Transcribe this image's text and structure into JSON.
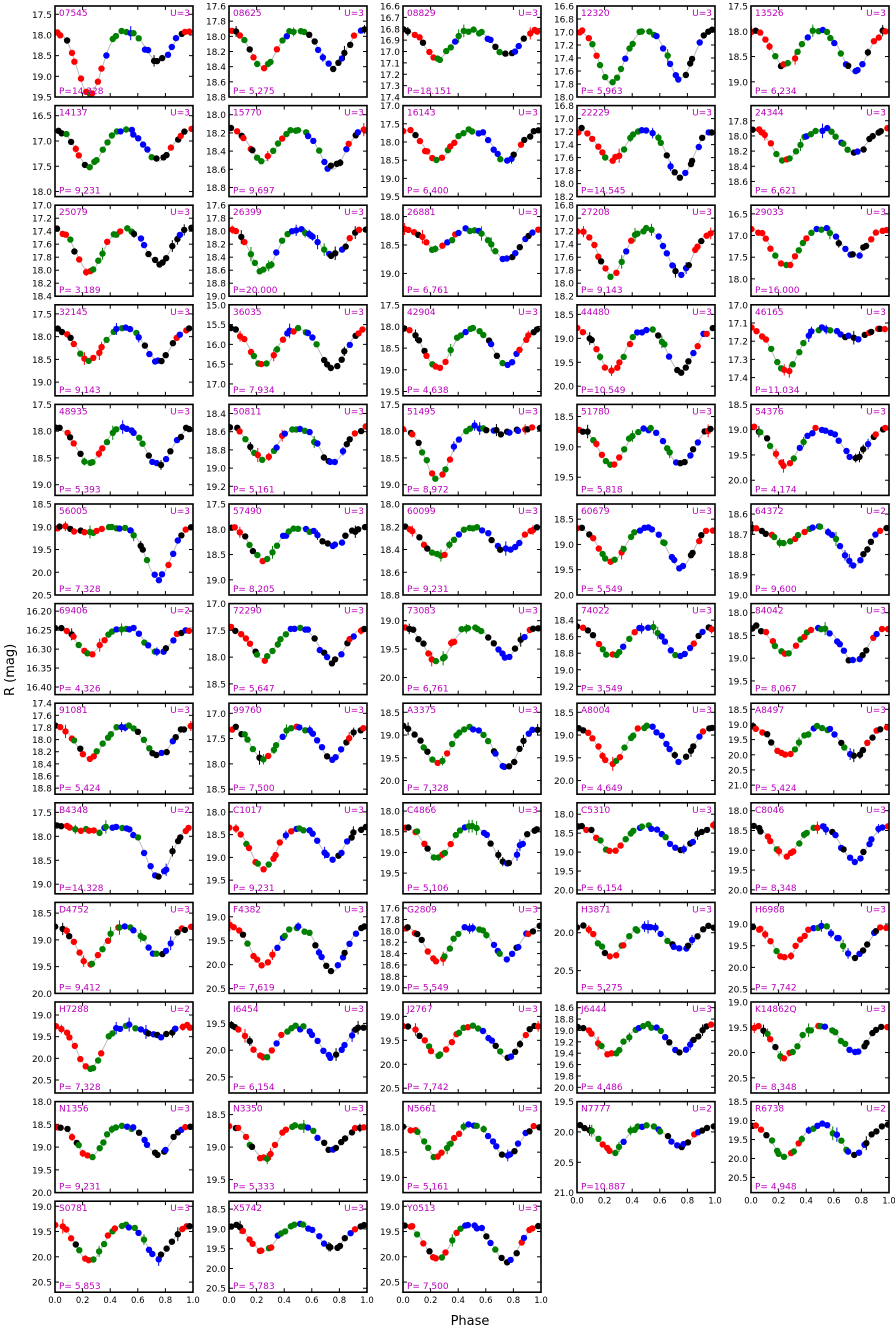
{
  "figure": {
    "xlabel": "Phase",
    "ylabel": "R (mag)",
    "colors": {
      "label": "#bb00bb",
      "model": "#bbbbbb",
      "black": "#000000",
      "red": "#ff0000",
      "green": "#008000",
      "blue": "#0000ff"
    }
  },
  "chart_data": [
    {
      "type": "scatter",
      "id": "07545",
      "P": "P=14.328",
      "U": "U=3",
      "ylim": [
        19.5,
        17.3
      ],
      "yticks": [
        "17.5",
        "18.0",
        "18.5",
        "19.0",
        "19.5"
      ],
      "depth": [
        1.2,
        0.6
      ]
    },
    {
      "type": "scatter",
      "id": "08625",
      "P": "P= 5.275",
      "U": "U=3",
      "ylim": [
        18.8,
        17.6
      ],
      "yticks": [
        "17.6",
        "17.8",
        "18.0",
        "18.2",
        "18.4",
        "18.6",
        "18.8"
      ],
      "depth": [
        0.7,
        0.7
      ]
    },
    {
      "type": "scatter",
      "id": "08829",
      "P": "P=18.151",
      "U": "U=3",
      "ylim": [
        17.4,
        16.6
      ],
      "yticks": [
        "16.6",
        "16.7",
        "16.8",
        "16.9",
        "17.0",
        "17.1",
        "17.2",
        "17.3",
        "17.4"
      ],
      "depth": [
        0.55,
        0.5
      ]
    },
    {
      "type": "scatter",
      "id": "12320",
      "P": "P= 5.963",
      "U": "U=3",
      "ylim": [
        18.0,
        16.6
      ],
      "yticks": [
        "16.6",
        "16.8",
        "17.0",
        "17.2",
        "17.4",
        "17.6",
        "17.8",
        "18.0"
      ],
      "depth": [
        1.0,
        0.9
      ]
    },
    {
      "type": "scatter",
      "id": "13526",
      "P": "P= 6.234",
      "U": "U=3",
      "ylim": [
        19.3,
        17.5
      ],
      "yticks": [
        "17.5",
        "18.0",
        "18.5",
        "19.0"
      ],
      "depth": [
        0.7,
        0.8
      ]
    },
    {
      "type": "scatter",
      "id": "14137",
      "P": "P= 9.231",
      "U": "U=3",
      "ylim": [
        18.1,
        16.3
      ],
      "yticks": [
        "16.5",
        "17.0",
        "17.5",
        "18.0"
      ],
      "depth": [
        0.7,
        0.6
      ]
    },
    {
      "type": "scatter",
      "id": "15770",
      "P": "P= 9.697",
      "U": "U=3",
      "ylim": [
        18.9,
        17.9
      ],
      "yticks": [
        "18.0",
        "18.2",
        "18.4",
        "18.6",
        "18.8"
      ],
      "depth": [
        0.6,
        0.75
      ]
    },
    {
      "type": "scatter",
      "id": "16143",
      "P": "P= 6.400",
      "U": "U=3",
      "ylim": [
        19.5,
        17.0
      ],
      "yticks": [
        "17.0",
        "17.5",
        "18.0",
        "18.5",
        "19.0",
        "19.5"
      ],
      "depth": [
        0.6,
        0.6
      ]
    },
    {
      "type": "scatter",
      "id": "22229",
      "P": "P=14.545",
      "U": "U=3",
      "ylim": [
        18.2,
        16.8
      ],
      "yticks": [
        "16.8",
        "17.0",
        "17.2",
        "17.4",
        "17.6",
        "17.8",
        "18.0",
        "18.2"
      ],
      "depth": [
        0.6,
        0.9
      ]
    },
    {
      "type": "scatter",
      "id": "24344",
      "P": "P= 6.621",
      "U": "U=3",
      "ylim": [
        18.8,
        17.6
      ],
      "yticks": [
        "17.8",
        "18.0",
        "18.2",
        "18.4",
        "18.6"
      ],
      "depth": [
        0.6,
        0.45
      ]
    },
    {
      "type": "scatter",
      "id": "25079",
      "P": "P= 3.189",
      "U": "U=3",
      "ylim": [
        18.4,
        17.0
      ],
      "yticks": [
        "17.0",
        "17.2",
        "17.4",
        "17.6",
        "17.8",
        "18.0",
        "18.2",
        "18.4"
      ],
      "depth": [
        0.8,
        0.65
      ]
    },
    {
      "type": "scatter",
      "id": "26399",
      "P": "P=20.000",
      "U": "U=3",
      "ylim": [
        19.0,
        17.6
      ],
      "yticks": [
        "17.6",
        "17.8",
        "18.0",
        "18.2",
        "18.4",
        "18.6",
        "18.8",
        "19.0"
      ],
      "depth": [
        0.8,
        0.5
      ]
    },
    {
      "type": "scatter",
      "id": "26881",
      "P": "P= 6.761",
      "U": "U=3",
      "ylim": [
        19.4,
        17.8
      ],
      "yticks": [
        "18.0",
        "18.5",
        "19.0"
      ],
      "depth": [
        0.4,
        0.6
      ]
    },
    {
      "type": "scatter",
      "id": "27208",
      "P": "P= 9.143",
      "U": "U=3",
      "ylim": [
        18.2,
        16.8
      ],
      "yticks": [
        "16.8",
        "17.0",
        "17.2",
        "17.4",
        "17.6",
        "17.8",
        "18.0",
        "18.2"
      ],
      "depth": [
        0.85,
        0.85
      ]
    },
    {
      "type": "scatter",
      "id": "29033",
      "P": "P=16.000",
      "U": "U=3",
      "ylim": [
        18.4,
        16.3
      ],
      "yticks": [
        "16.5",
        "17.0",
        "17.5",
        "18.0"
      ],
      "depth": [
        0.7,
        0.5
      ]
    },
    {
      "type": "scatter",
      "id": "32145",
      "P": "P= 9.143",
      "U": "U=3",
      "ylim": [
        19.3,
        17.3
      ],
      "yticks": [
        "17.5",
        "18.0",
        "18.5",
        "19.0"
      ],
      "depth": [
        0.6,
        0.6
      ]
    },
    {
      "type": "scatter",
      "id": "36035",
      "P": "P= 7.934",
      "U": "U=3",
      "ylim": [
        17.3,
        15.0
      ],
      "yticks": [
        "15.0",
        "15.5",
        "16.0",
        "16.5",
        "17.0"
      ],
      "depth": [
        0.7,
        0.75
      ]
    },
    {
      "type": "scatter",
      "id": "42904",
      "P": "P= 4.638",
      "U": "U=3",
      "ylim": [
        19.6,
        17.5
      ],
      "yticks": [
        "17.5",
        "18.0",
        "18.5",
        "19.0",
        "19.5"
      ],
      "depth": [
        0.75,
        0.7
      ]
    },
    {
      "type": "scatter",
      "id": "44480",
      "P": "P=10.549",
      "U": "U=3",
      "ylim": [
        20.2,
        18.3
      ],
      "yticks": [
        "18.5",
        "19.0",
        "19.5",
        "20.0"
      ],
      "depth": [
        0.8,
        0.8
      ]
    },
    {
      "type": "scatter",
      "id": "46165",
      "P": "P=11.034",
      "U": "U=3",
      "ylim": [
        17.5,
        17.0
      ],
      "yticks": [
        "17.0",
        "17.1",
        "17.2",
        "17.3",
        "17.4"
      ],
      "depth": [
        0.8,
        0.2
      ]
    },
    {
      "type": "scatter",
      "id": "48935",
      "P": "P= 5.393",
      "U": "U=3",
      "ylim": [
        19.2,
        17.5
      ],
      "yticks": [
        "17.5",
        "18.0",
        "18.5",
        "19.0"
      ],
      "depth": [
        0.65,
        0.7
      ]
    },
    {
      "type": "scatter",
      "id": "50811",
      "P": "P= 5.161",
      "U": "U=3",
      "ylim": [
        19.3,
        18.3
      ],
      "yticks": [
        "18.4",
        "18.6",
        "18.8",
        "19.0",
        "19.2"
      ],
      "depth": [
        0.6,
        0.65
      ]
    },
    {
      "type": "scatter",
      "id": "51495",
      "P": "P= 8.972",
      "U": "U=3",
      "ylim": [
        19.2,
        17.5
      ],
      "yticks": [
        "17.5",
        "18.0",
        "18.5",
        "19.0"
      ],
      "depth": [
        0.95,
        0.1
      ]
    },
    {
      "type": "scatter",
      "id": "51780",
      "P": "P= 5.818",
      "U": "U=3",
      "ylim": [
        19.8,
        18.3
      ],
      "yticks": [
        "18.5",
        "19.0",
        "19.5"
      ],
      "depth": [
        0.7,
        0.7
      ]
    },
    {
      "type": "scatter",
      "id": "54376",
      "P": "P= 4.174",
      "U": "U=3",
      "ylim": [
        20.3,
        18.5
      ],
      "yticks": [
        "18.5",
        "19.0",
        "19.5",
        "20.0"
      ],
      "depth": [
        0.7,
        0.55
      ]
    },
    {
      "type": "scatter",
      "id": "56005",
      "P": "P= 7.328",
      "U": "U=3",
      "ylim": [
        20.5,
        18.5
      ],
      "yticks": [
        "18.5",
        "19.0",
        "19.5",
        "20.0",
        "20.5"
      ],
      "depth": [
        0.1,
        0.95
      ]
    },
    {
      "type": "scatter",
      "id": "57490",
      "P": "P= 8.205",
      "U": "U=3",
      "ylim": [
        19.3,
        17.5
      ],
      "yticks": [
        "17.5",
        "18.0",
        "18.5",
        "19.0"
      ],
      "depth": [
        0.6,
        0.35
      ]
    },
    {
      "type": "scatter",
      "id": "60099",
      "P": "P= 9.231",
      "U": "U=3",
      "ylim": [
        18.8,
        18.0
      ],
      "yticks": [
        "18.0",
        "18.2",
        "18.4",
        "18.6",
        "18.8"
      ],
      "depth": [
        0.55,
        0.45
      ]
    },
    {
      "type": "scatter",
      "id": "60679",
      "P": "P= 5.549",
      "U": "U=3",
      "ylim": [
        20.0,
        18.2
      ],
      "yticks": [
        "18.5",
        "19.0",
        "19.5",
        "20.0"
      ],
      "depth": [
        0.65,
        0.75
      ]
    },
    {
      "type": "scatter",
      "id": "64372",
      "P": "P= 9.600",
      "U": "U=2",
      "ylim": [
        19.0,
        18.55
      ],
      "yticks": [
        "18.6",
        "18.7",
        "18.8",
        "18.9",
        "19.0"
      ],
      "depth": [
        0.3,
        0.7
      ]
    },
    {
      "type": "scatter",
      "id": "69406",
      "P": "P= 4.326",
      "U": "U=2",
      "ylim": [
        16.42,
        16.18
      ],
      "yticks": [
        "16.20",
        "16.25",
        "16.30",
        "16.35",
        "16.40"
      ],
      "depth": [
        0.5,
        0.5
      ]
    },
    {
      "type": "scatter",
      "id": "72290",
      "P": "P= 5.647",
      "U": "U=3",
      "ylim": [
        18.7,
        17.0
      ],
      "yticks": [
        "17.0",
        "17.5",
        "18.0",
        "18.5"
      ],
      "depth": [
        0.6,
        0.65
      ]
    },
    {
      "type": "scatter",
      "id": "73083",
      "P": "P= 6.761",
      "U": "U=3",
      "ylim": [
        20.3,
        18.7
      ],
      "yticks": [
        "19.0",
        "19.5",
        "20.0"
      ],
      "depth": [
        0.65,
        0.55
      ]
    },
    {
      "type": "scatter",
      "id": "74022",
      "P": "P= 3.549",
      "U": "U=3",
      "ylim": [
        19.3,
        18.2
      ],
      "yticks": [
        "18.4",
        "18.6",
        "18.8",
        "19.0",
        "19.2"
      ],
      "depth": [
        0.55,
        0.55
      ]
    },
    {
      "type": "scatter",
      "id": "84042",
      "P": "P= 8.067",
      "U": "U=3",
      "ylim": [
        19.8,
        17.8
      ],
      "yticks": [
        "18.0",
        "18.5",
        "19.0",
        "19.5"
      ],
      "depth": [
        0.5,
        0.65
      ]
    },
    {
      "type": "scatter",
      "id": "91081",
      "P": "P= 5.424",
      "U": "U=3",
      "ylim": [
        18.9,
        17.4
      ],
      "yticks": [
        "17.4",
        "17.6",
        "17.8",
        "18.0",
        "18.2",
        "18.4",
        "18.6",
        "18.8"
      ],
      "depth": [
        0.6,
        0.55
      ]
    },
    {
      "type": "scatter",
      "id": "99760",
      "P": "P= 7.500",
      "U": "U=3",
      "ylim": [
        18.6,
        16.8
      ],
      "yticks": [
        "17.0",
        "17.5",
        "18.0",
        "18.5"
      ],
      "depth": [
        0.6,
        0.6
      ]
    },
    {
      "type": "scatter",
      "id": "A3375",
      "P": "P= 7.328",
      "U": "U=3",
      "ylim": [
        20.3,
        18.3
      ],
      "yticks": [
        "18.5",
        "19.0",
        "19.5",
        "20.0"
      ],
      "depth": [
        0.7,
        0.75
      ]
    },
    {
      "type": "scatter",
      "id": "A8004",
      "P": "P= 4.649",
      "U": "U=3",
      "ylim": [
        20.3,
        18.3
      ],
      "yticks": [
        "18.5",
        "19.0",
        "19.5",
        "20.0"
      ],
      "depth": [
        0.7,
        0.65
      ]
    },
    {
      "type": "scatter",
      "id": "A8497",
      "P": "P= 5.424",
      "U": "U=3",
      "ylim": [
        21.3,
        18.3
      ],
      "yticks": [
        "18.5",
        "19.0",
        "19.5",
        "20.0",
        "20.5",
        "21.0"
      ],
      "depth": [
        0.55,
        0.55
      ]
    },
    {
      "type": "scatter",
      "id": "B4348",
      "P": "P=14.328",
      "U": "U=2",
      "ylim": [
        19.2,
        17.3
      ],
      "yticks": [
        "17.5",
        "18.0",
        "18.5",
        "19.0"
      ],
      "depth": [
        0.1,
        0.95
      ]
    },
    {
      "type": "scatter",
      "id": "C1017",
      "P": "P= 9.231",
      "U": "U=3",
      "ylim": [
        19.8,
        17.8
      ],
      "yticks": [
        "18.0",
        "18.5",
        "19.0",
        "19.5"
      ],
      "depth": [
        0.8,
        0.6
      ]
    },
    {
      "type": "scatter",
      "id": "C4866",
      "P": "P= 5.106",
      "U": "U=3",
      "ylim": [
        20.0,
        17.8
      ],
      "yticks": [
        "18.0",
        "18.5",
        "19.0",
        "19.5"
      ],
      "depth": [
        0.6,
        0.7
      ]
    },
    {
      "type": "scatter",
      "id": "C5310",
      "P": "P= 6.154",
      "U": "U=3",
      "ylim": [
        20.1,
        17.7
      ],
      "yticks": [
        "18.0",
        "18.5",
        "19.0",
        "19.5",
        "20.0"
      ],
      "depth": [
        0.45,
        0.45
      ]
    },
    {
      "type": "scatter",
      "id": "C8046",
      "P": "P= 8.348",
      "U": "U=3",
      "ylim": [
        20.1,
        17.8
      ],
      "yticks": [
        "18.0",
        "18.5",
        "19.0",
        "19.5",
        "20.0"
      ],
      "depth": [
        0.55,
        0.65
      ]
    },
    {
      "type": "scatter",
      "id": "D4752",
      "P": "P= 9.412",
      "U": "U=3",
      "ylim": [
        20.0,
        18.3
      ],
      "yticks": [
        "18.5",
        "19.0",
        "19.5",
        "20.0"
      ],
      "depth": [
        0.7,
        0.55
      ]
    },
    {
      "type": "scatter",
      "id": "F4382",
      "P": "P= 7.619",
      "U": "U=3",
      "ylim": [
        20.6,
        18.7
      ],
      "yticks": [
        "19.0",
        "19.5",
        "20.0",
        "20.5"
      ],
      "depth": [
        0.75,
        0.85
      ]
    },
    {
      "type": "scatter",
      "id": "G2809",
      "P": "P= 5.549",
      "U": "U=3",
      "ylim": [
        19.1,
        17.5
      ],
      "yticks": [
        "17.6",
        "17.8",
        "18.0",
        "18.2",
        "18.4",
        "18.6",
        "18.8",
        "19.0"
      ],
      "depth": [
        0.65,
        0.6
      ]
    },
    {
      "type": "scatter",
      "id": "H3871",
      "P": "P= 5.275",
      "U": "U=3",
      "ylim": [
        20.8,
        19.6
      ],
      "yticks": [
        "20.0",
        "20.5"
      ],
      "depth": [
        0.55,
        0.45
      ]
    },
    {
      "type": "scatter",
      "id": "H6988",
      "P": "P= 7.742",
      "U": "U=3",
      "ylim": [
        20.6,
        18.5
      ],
      "yticks": [
        "19.0",
        "19.5",
        "20.0",
        "20.5"
      ],
      "depth": [
        0.6,
        0.6
      ]
    },
    {
      "type": "scatter",
      "id": "H7288",
      "P": "P= 7.328",
      "U": "U=2",
      "ylim": [
        20.8,
        18.7
      ],
      "yticks": [
        "19.0",
        "19.5",
        "20.0",
        "20.5"
      ],
      "depth": [
        0.8,
        0.2
      ]
    },
    {
      "type": "scatter",
      "id": "I6454",
      "P": "P= 6.154",
      "U": "U=3",
      "ylim": [
        20.8,
        19.1
      ],
      "yticks": [
        "19.5",
        "20.0",
        "20.5"
      ],
      "depth": [
        0.6,
        0.6
      ]
    },
    {
      "type": "scatter",
      "id": "J2767",
      "P": "P= 7.742",
      "U": "U=3",
      "ylim": [
        20.6,
        18.7
      ],
      "yticks": [
        "19.0",
        "19.5",
        "20.0",
        "20.5"
      ],
      "depth": [
        0.55,
        0.6
      ]
    },
    {
      "type": "scatter",
      "id": "J6444",
      "P": "P= 4.486",
      "U": "U=3",
      "ylim": [
        20.1,
        18.5
      ],
      "yticks": [
        "18.6",
        "18.8",
        "19.0",
        "19.2",
        "19.4",
        "19.6",
        "19.8",
        "20.0"
      ],
      "depth": [
        0.55,
        0.5
      ]
    },
    {
      "type": "scatter",
      "id": "K14862Q",
      "P": "P= 8.348",
      "U": "U=3",
      "ylim": [
        20.8,
        19.0
      ],
      "yticks": [
        "19.0",
        "19.5",
        "20.0",
        "20.5"
      ],
      "depth": [
        0.6,
        0.5
      ]
    },
    {
      "type": "scatter",
      "id": "N1356",
      "P": "P= 9.231",
      "U": "U=3",
      "ylim": [
        20.0,
        18.0
      ],
      "yticks": [
        "18.0",
        "18.5",
        "19.0",
        "19.5",
        "20.0"
      ],
      "depth": [
        0.6,
        0.55
      ]
    },
    {
      "type": "scatter",
      "id": "N3350",
      "P": "P= 5.333",
      "U": "U=3",
      "ylim": [
        19.7,
        18.3
      ],
      "yticks": [
        "18.5",
        "19.0",
        "19.5"
      ],
      "depth": [
        0.6,
        0.45
      ]
    },
    {
      "type": "scatter",
      "id": "N5661",
      "P": "P= 5.161",
      "U": "U=3",
      "ylim": [
        19.3,
        17.5
      ],
      "yticks": [
        "18.0",
        "18.5",
        "19.0"
      ],
      "depth": [
        0.6,
        0.6
      ]
    },
    {
      "type": "scatter",
      "id": "N7777",
      "P": "P=10.887",
      "U": "U=2",
      "ylim": [
        21.0,
        19.5
      ],
      "yticks": [
        "19.5",
        "20.0",
        "20.5",
        "21.0"
      ],
      "depth": [
        0.5,
        0.4
      ]
    },
    {
      "type": "scatter",
      "id": "R6738",
      "P": "P= 4.948",
      "U": "U=2",
      "ylim": [
        20.9,
        18.5
      ],
      "yticks": [
        "18.5",
        "19.0",
        "19.5",
        "20.0",
        "20.5"
      ],
      "depth": [
        0.6,
        0.55
      ]
    },
    {
      "type": "scatter",
      "id": "S0781",
      "P": "P= 5.853",
      "U": "U=3",
      "ylim": [
        20.7,
        18.9
      ],
      "yticks": [
        "19.0",
        "19.5",
        "20.0",
        "20.5"
      ],
      "depth": [
        0.7,
        0.6
      ]
    },
    {
      "type": "scatter",
      "id": "X5742",
      "P": "P= 5.783",
      "U": "U=3",
      "ylim": [
        20.6,
        18.3
      ],
      "yticks": [
        "18.5",
        "19.0",
        "19.5",
        "20.0",
        "20.5"
      ],
      "depth": [
        0.5,
        0.45
      ]
    },
    {
      "type": "scatter",
      "id": "Y0513",
      "P": "P= 7.500",
      "U": "U=3",
      "ylim": [
        20.7,
        18.9
      ],
      "yticks": [
        "19.0",
        "19.5",
        "20.0",
        "20.5"
      ],
      "depth": [
        0.65,
        0.7
      ]
    }
  ],
  "xaxis": {
    "xlim": [
      0.0,
      1.0
    ],
    "ticks": [
      "0.0",
      "0.2",
      "0.4",
      "0.6",
      "0.8",
      "1.0"
    ]
  }
}
